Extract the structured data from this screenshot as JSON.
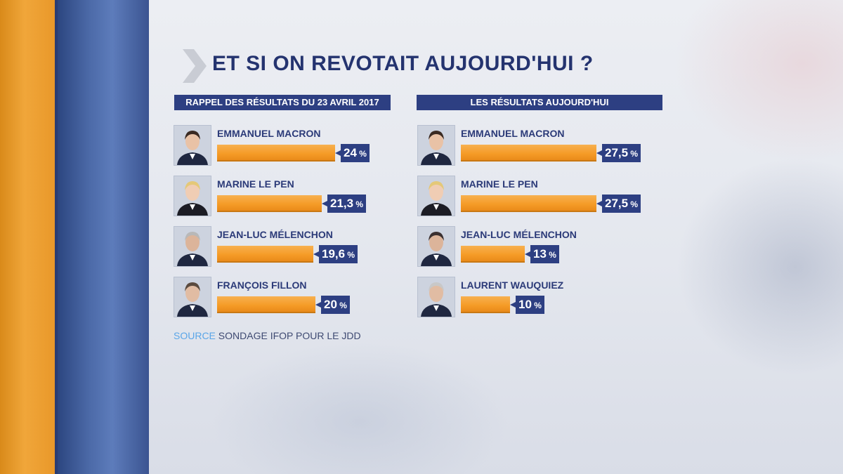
{
  "title": "ET SI ON REVOTAIT AUJOURD'HUI ?",
  "source_label": "SOURCE",
  "source_text": "SONDAGE IFOP POUR LE JDD",
  "colors": {
    "bar": "#f59b26",
    "header": "#2d3f82",
    "title": "#24336f",
    "source_label": "#5aa6e8"
  },
  "chart_data": [
    {
      "type": "bar",
      "title": "RAPPEL DES RÉSULTATS DU 23 AVRIL 2017",
      "categories": [
        "EMMANUEL MACRON",
        "MARINE LE PEN",
        "JEAN-LUC MÉLENCHON",
        "FRANÇOIS FILLON"
      ],
      "values": [
        24,
        21.3,
        19.6,
        20
      ],
      "labels": [
        "24",
        "21,3",
        "19,6",
        "20"
      ],
      "unit": "%"
    },
    {
      "type": "bar",
      "title": "LES RÉSULTATS AUJOURD'HUI",
      "categories": [
        "EMMANUEL MACRON",
        "MARINE LE PEN",
        "JEAN-LUC MÉLENCHON",
        "LAURENT WAUQUIEZ"
      ],
      "values": [
        27.5,
        27.5,
        13,
        10
      ],
      "labels": [
        "27,5",
        "27,5",
        "13",
        "10"
      ],
      "unit": "%"
    }
  ]
}
